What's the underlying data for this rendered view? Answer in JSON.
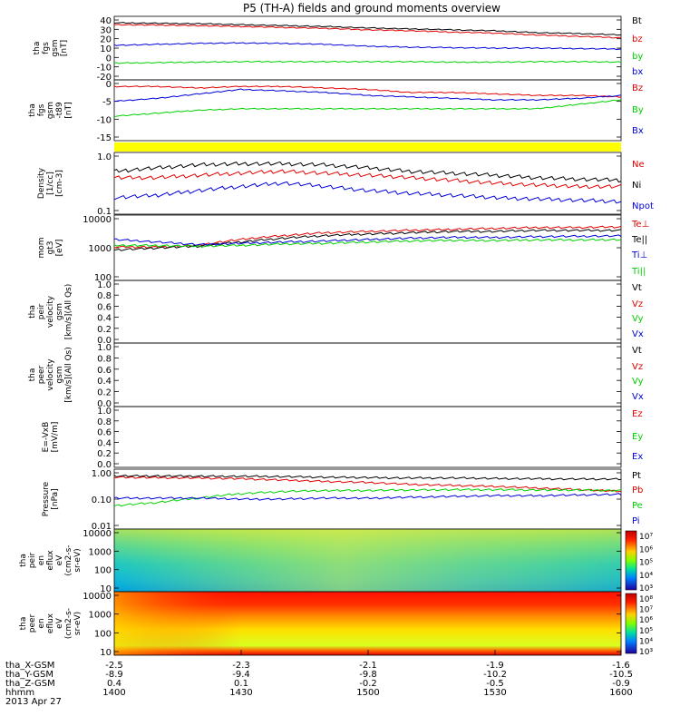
{
  "title": "P5 (TH-A) fields and ground moments overview",
  "colors": {
    "black": "#000000",
    "red": "#e00000",
    "green": "#00d000",
    "blue": "#0000d8",
    "yellow": "#ffff00"
  },
  "chart_data": [
    {
      "type": "line",
      "ylabel": [
        "tha",
        "fgs",
        "gsm",
        "[nT]"
      ],
      "yticks": [
        "40",
        "30",
        "20",
        "10",
        "0",
        "-10",
        "-20"
      ],
      "ylim": [
        -20,
        40
      ],
      "series": [
        {
          "name": "Bt",
          "color": "#000000",
          "values": [
            37,
            36.5,
            36,
            35,
            34,
            33,
            31.5,
            30.5,
            29.5,
            28.5,
            26.5,
            25.5,
            24
          ]
        },
        {
          "name": "bz",
          "color": "#e00000",
          "values": [
            35,
            34.5,
            34,
            33,
            32,
            31,
            29.5,
            28.5,
            27,
            26,
            24,
            22.5,
            21
          ]
        },
        {
          "name": "by",
          "color": "#00d000",
          "values": [
            -6,
            -5.5,
            -5,
            -4.5,
            -4.5,
            -4.5,
            -4.5,
            -4.5,
            -5,
            -5,
            -4.5,
            -4.5,
            -5
          ]
        },
        {
          "name": "bx",
          "color": "#0000d8",
          "values": [
            13,
            14,
            15,
            15.5,
            15,
            14,
            12,
            11,
            10.5,
            10,
            10,
            9.5,
            9
          ]
        }
      ]
    },
    {
      "type": "line",
      "ylabel": [
        "tha",
        "fgs",
        "gsm",
        "-t89",
        "[nT]"
      ],
      "yticks": [
        "0",
        "-5",
        "-10",
        "-15"
      ],
      "ylim": [
        -17,
        1
      ],
      "series": [
        {
          "name": "Bz",
          "color": "#e00000",
          "values": [
            0,
            0,
            -0.5,
            0,
            0,
            -0.5,
            -1,
            -2,
            -2,
            -2.5,
            -3,
            -3,
            -3.5
          ]
        },
        {
          "name": "By",
          "color": "#00d000",
          "values": [
            -10,
            -9,
            -8,
            -7.5,
            -7.5,
            -7.5,
            -7.5,
            -7.5,
            -7.5,
            -7.5,
            -7.5,
            -6,
            -4.5
          ]
        },
        {
          "name": "Bx",
          "color": "#0000d8",
          "values": [
            -5,
            -4,
            -2.5,
            -1,
            -1.5,
            -2,
            -3,
            -3.5,
            -4,
            -4.5,
            -4.5,
            -4,
            -3
          ]
        }
      ]
    },
    {
      "type": "line",
      "yscale": "log",
      "ylabel": [
        "Density",
        "[1/cc]",
        "[cm-3]"
      ],
      "yticks": [
        "1.0",
        "0.1"
      ],
      "ylim": [
        0.1,
        1.2
      ],
      "series": [
        {
          "name": "Ne",
          "color": "#e00000",
          "values": [
            0.45,
            0.45,
            0.5,
            0.55,
            0.6,
            0.55,
            0.5,
            0.45,
            0.4,
            0.35,
            0.32,
            0.3,
            0.3
          ]
        },
        {
          "name": "Ni",
          "color": "#000000",
          "values": [
            0.6,
            0.7,
            0.8,
            0.85,
            0.85,
            0.8,
            0.7,
            0.6,
            0.55,
            0.5,
            0.45,
            0.42,
            0.4
          ]
        },
        {
          "name": "Npot",
          "color": "#0000d8",
          "values": [
            0.18,
            0.2,
            0.25,
            0.3,
            0.35,
            0.3,
            0.25,
            0.22,
            0.2,
            0.18,
            0.17,
            0.16,
            0.15
          ]
        }
      ]
    },
    {
      "type": "line",
      "yscale": "log",
      "ylabel": [
        "mom",
        "gt3",
        "[eV]"
      ],
      "yticks": [
        "10000",
        "1000",
        "100"
      ],
      "ylim": [
        100,
        15000
      ],
      "series": [
        {
          "name": "Te⊥",
          "color": "#e00000",
          "values": [
            1300,
            1300,
            1500,
            2500,
            3500,
            4500,
            5000,
            5500,
            6000,
            6500,
            7000,
            7000,
            7500
          ]
        },
        {
          "name": "Te||",
          "color": "#000000",
          "values": [
            1000,
            1200,
            1400,
            2000,
            2800,
            3500,
            4000,
            4500,
            5000,
            5000,
            5500,
            5500,
            5500
          ]
        },
        {
          "name": "Ti⊥",
          "color": "#0000d8",
          "values": [
            2500,
            2000,
            1600,
            1800,
            2000,
            2200,
            2500,
            2800,
            3000,
            3000,
            3200,
            3300,
            3400
          ]
        },
        {
          "name": "Ti||",
          "color": "#00d000",
          "values": [
            1500,
            1500,
            1400,
            1500,
            1700,
            1800,
            2000,
            2200,
            2300,
            2300,
            2400,
            2400,
            2500
          ]
        }
      ]
    },
    {
      "type": "line",
      "ylabel": [
        "tha",
        "peir",
        "velocity",
        "gsm",
        "[km/s](All Qs)"
      ],
      "yticks": [
        "1.0",
        "0.8",
        "0.6",
        "0.4",
        "0.2",
        "0.0"
      ],
      "ylim": [
        0,
        1
      ],
      "series": [
        {
          "name": "Vt",
          "color": "#000000",
          "values": []
        },
        {
          "name": "Vz",
          "color": "#e00000",
          "values": []
        },
        {
          "name": "Vy",
          "color": "#00d000",
          "values": []
        },
        {
          "name": "Vx",
          "color": "#0000d8",
          "values": []
        }
      ]
    },
    {
      "type": "line",
      "ylabel": [
        "tha",
        "peer",
        "velocity",
        "gsm",
        "[km/s](All Qs)"
      ],
      "yticks": [
        "1.0",
        "0.8",
        "0.6",
        "0.4",
        "0.2",
        "0.0"
      ],
      "ylim": [
        0,
        1
      ],
      "series": [
        {
          "name": "Vt",
          "color": "#000000",
          "values": []
        },
        {
          "name": "Vz",
          "color": "#e00000",
          "values": []
        },
        {
          "name": "Vy",
          "color": "#00d000",
          "values": []
        },
        {
          "name": "Vx",
          "color": "#0000d8",
          "values": []
        }
      ]
    },
    {
      "type": "line",
      "ylabel": [
        "E=-VxB",
        "[mV/m]"
      ],
      "yticks": [
        "1.0",
        "0.8",
        "0.6",
        "0.4",
        "0.2",
        "0.0"
      ],
      "ylim": [
        0,
        1
      ],
      "series": [
        {
          "name": "Ez",
          "color": "#e00000",
          "values": []
        },
        {
          "name": "Ey",
          "color": "#00d000",
          "values": []
        },
        {
          "name": "Ex",
          "color": "#0000d8",
          "values": []
        }
      ]
    },
    {
      "type": "line",
      "yscale": "log",
      "ylabel": [
        "Pressure",
        "[nPa]"
      ],
      "yticks": [
        "1.00",
        "0.10",
        "0.01"
      ],
      "ylim": [
        0.01,
        1.2
      ],
      "series": [
        {
          "name": "Pt",
          "color": "#000000",
          "values": [
            0.9,
            0.9,
            0.88,
            0.88,
            0.85,
            0.8,
            0.78,
            0.75,
            0.75,
            0.72,
            0.7,
            0.68,
            0.68
          ]
        },
        {
          "name": "Pb",
          "color": "#e00000",
          "values": [
            0.8,
            0.78,
            0.75,
            0.7,
            0.62,
            0.55,
            0.5,
            0.42,
            0.38,
            0.35,
            0.3,
            0.26,
            0.22
          ]
        },
        {
          "name": "Pe",
          "color": "#00d000",
          "values": [
            0.06,
            0.08,
            0.12,
            0.18,
            0.22,
            0.24,
            0.24,
            0.25,
            0.26,
            0.26,
            0.25,
            0.25,
            0.24
          ]
        },
        {
          "name": "Pi",
          "color": "#0000d8",
          "values": [
            0.12,
            0.12,
            0.12,
            0.11,
            0.11,
            0.12,
            0.12,
            0.13,
            0.14,
            0.15,
            0.15,
            0.16,
            0.17
          ]
        }
      ]
    },
    {
      "type": "heatmap",
      "ylabel": [
        "tha",
        "peir",
        "en",
        "eflux",
        "eV",
        "(cm2-s-",
        "sr-eV)"
      ],
      "yticks": [
        "10000",
        "1000",
        "100",
        "10"
      ],
      "colorbar_labels": [
        "10⁷",
        "10⁶",
        "10⁵",
        "10⁴",
        "10³"
      ]
    },
    {
      "type": "heatmap",
      "ylabel": [
        "tha",
        "peer",
        "en",
        "eflux",
        "eV",
        "(cm2-s-",
        "sr-eV)"
      ],
      "yticks": [
        "10000",
        "1000",
        "100",
        "10"
      ],
      "colorbar_labels": [
        "10⁸",
        "10⁷",
        "10⁶",
        "10⁵",
        "10⁴",
        "10³"
      ]
    }
  ],
  "x_axis": {
    "rows": [
      {
        "name": "tha_X-GSM",
        "values": [
          "-2.5",
          "-2.3",
          "-2.1",
          "-1.9",
          "-1.6"
        ]
      },
      {
        "name": "tha_Y-GSM",
        "values": [
          "-8.9",
          "-9.4",
          "-9.8",
          "-10.2",
          "-10.5"
        ]
      },
      {
        "name": "tha_Z-GSM",
        "values": [
          "0.4",
          "0.1",
          "-0.2",
          "-0.5",
          "-0.9"
        ]
      },
      {
        "name": "hhmm",
        "values": [
          "1400",
          "1430",
          "1500",
          "1530",
          "1600"
        ]
      }
    ],
    "date": "2013 Apr 27"
  }
}
